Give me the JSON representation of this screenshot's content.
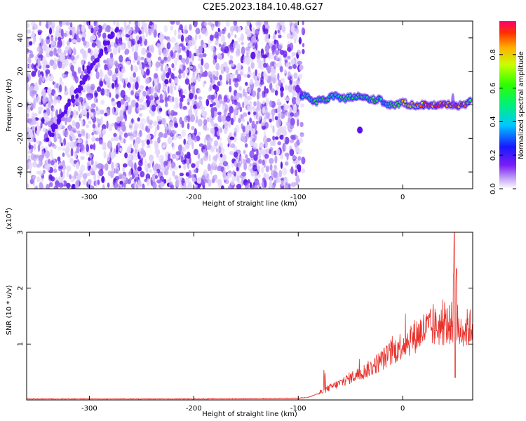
{
  "figure": {
    "title": "C2E5.2023.184.10.48.G27"
  },
  "colors": {
    "snr_line": "#e8302a",
    "spectrogram_low": "#c9b0f5",
    "spectrogram_mid": "#6a1df5",
    "axes": "#000000"
  },
  "chart_data": [
    {
      "id": "spectrogram",
      "type": "heatmap",
      "xlabel": "Height of straight line (km)",
      "ylabel": "Frequency (Hz)",
      "xlim": [
        -360,
        67
      ],
      "ylim": [
        -50,
        50
      ],
      "xticks": [
        -300,
        -200,
        -100,
        0
      ],
      "xtick_labels": [
        "-300",
        "-200",
        "-100",
        "0"
      ],
      "yticks": [
        -40,
        -20,
        0,
        20,
        40
      ],
      "ytick_labels": [
        "-40",
        "-20",
        "0",
        "20",
        "40"
      ],
      "colorbar": {
        "label": "Normalized spectral amplitude",
        "colormap": "rainbow",
        "range": [
          0.0,
          1.0
        ],
        "ticks": [
          0.0,
          0.2,
          0.4,
          0.6,
          0.8
        ],
        "tick_labels": [
          "0.0",
          "0.2",
          "0.4",
          "0.6",
          "0.8"
        ]
      },
      "noise_region_x": [
        -360,
        -95
      ],
      "signal_track": [
        {
          "x": -97,
          "y": 6,
          "amp": 0.35
        },
        {
          "x": -93,
          "y": 5,
          "amp": 0.5
        },
        {
          "x": -85,
          "y": 2,
          "amp": 0.55
        },
        {
          "x": -75,
          "y": 3,
          "amp": 0.55
        },
        {
          "x": -65,
          "y": 5,
          "amp": 0.5
        },
        {
          "x": -55,
          "y": 4,
          "amp": 0.5
        },
        {
          "x": -45,
          "y": 5,
          "amp": 0.55
        },
        {
          "x": -35,
          "y": 4,
          "amp": 0.5
        },
        {
          "x": -28,
          "y": 3,
          "amp": 0.55
        },
        {
          "x": -22,
          "y": 4,
          "amp": 0.5
        },
        {
          "x": -18,
          "y": 1,
          "amp": 0.45
        },
        {
          "x": -10,
          "y": 0,
          "amp": 0.55
        },
        {
          "x": 0,
          "y": 1,
          "amp": 0.7
        },
        {
          "x": 10,
          "y": 0,
          "amp": 0.75
        },
        {
          "x": 20,
          "y": 0,
          "amp": 0.85
        },
        {
          "x": 30,
          "y": 0,
          "amp": 0.9
        },
        {
          "x": 40,
          "y": 0,
          "amp": 0.95
        },
        {
          "x": 50,
          "y": 0,
          "amp": 0.9
        },
        {
          "x": 60,
          "y": 0,
          "amp": 0.85
        },
        {
          "x": 66,
          "y": 2,
          "amp": 0.6
        }
      ],
      "drift_streak": {
        "x_start": -340,
        "y_start": -20,
        "x_end": -275,
        "y_end": 45
      }
    },
    {
      "id": "snr",
      "type": "line",
      "xlabel": "Height of straight line (km)",
      "ylabel": "SNR (10 * v/v)",
      "y_multiplier_label": "(x10",
      "y_multiplier_exp": "4",
      "xlim": [
        -360,
        67
      ],
      "ylim": [
        0,
        3
      ],
      "xticks": [
        -300,
        -200,
        -100,
        0
      ],
      "xtick_labels": [
        "-300",
        "-200",
        "-100",
        "0"
      ],
      "yticks": [
        1,
        2,
        3
      ],
      "ytick_labels": [
        "1",
        "2",
        "3"
      ],
      "series": [
        {
          "x": [
            -360,
            -300,
            -200,
            -100,
            -90,
            -80,
            -70,
            -60,
            -50,
            -40,
            -30,
            -20,
            -10,
            0,
            10,
            20,
            30,
            40,
            45,
            48,
            50,
            52,
            55,
            60,
            67
          ],
          "values": [
            0.02,
            0.02,
            0.02,
            0.03,
            0.05,
            0.12,
            0.22,
            0.3,
            0.4,
            0.48,
            0.58,
            0.72,
            0.85,
            1.0,
            1.12,
            1.25,
            1.3,
            1.32,
            1.35,
            1.4,
            1.3,
            1.2,
            1.25,
            1.28,
            1.3
          ]
        }
      ]
    }
  ]
}
